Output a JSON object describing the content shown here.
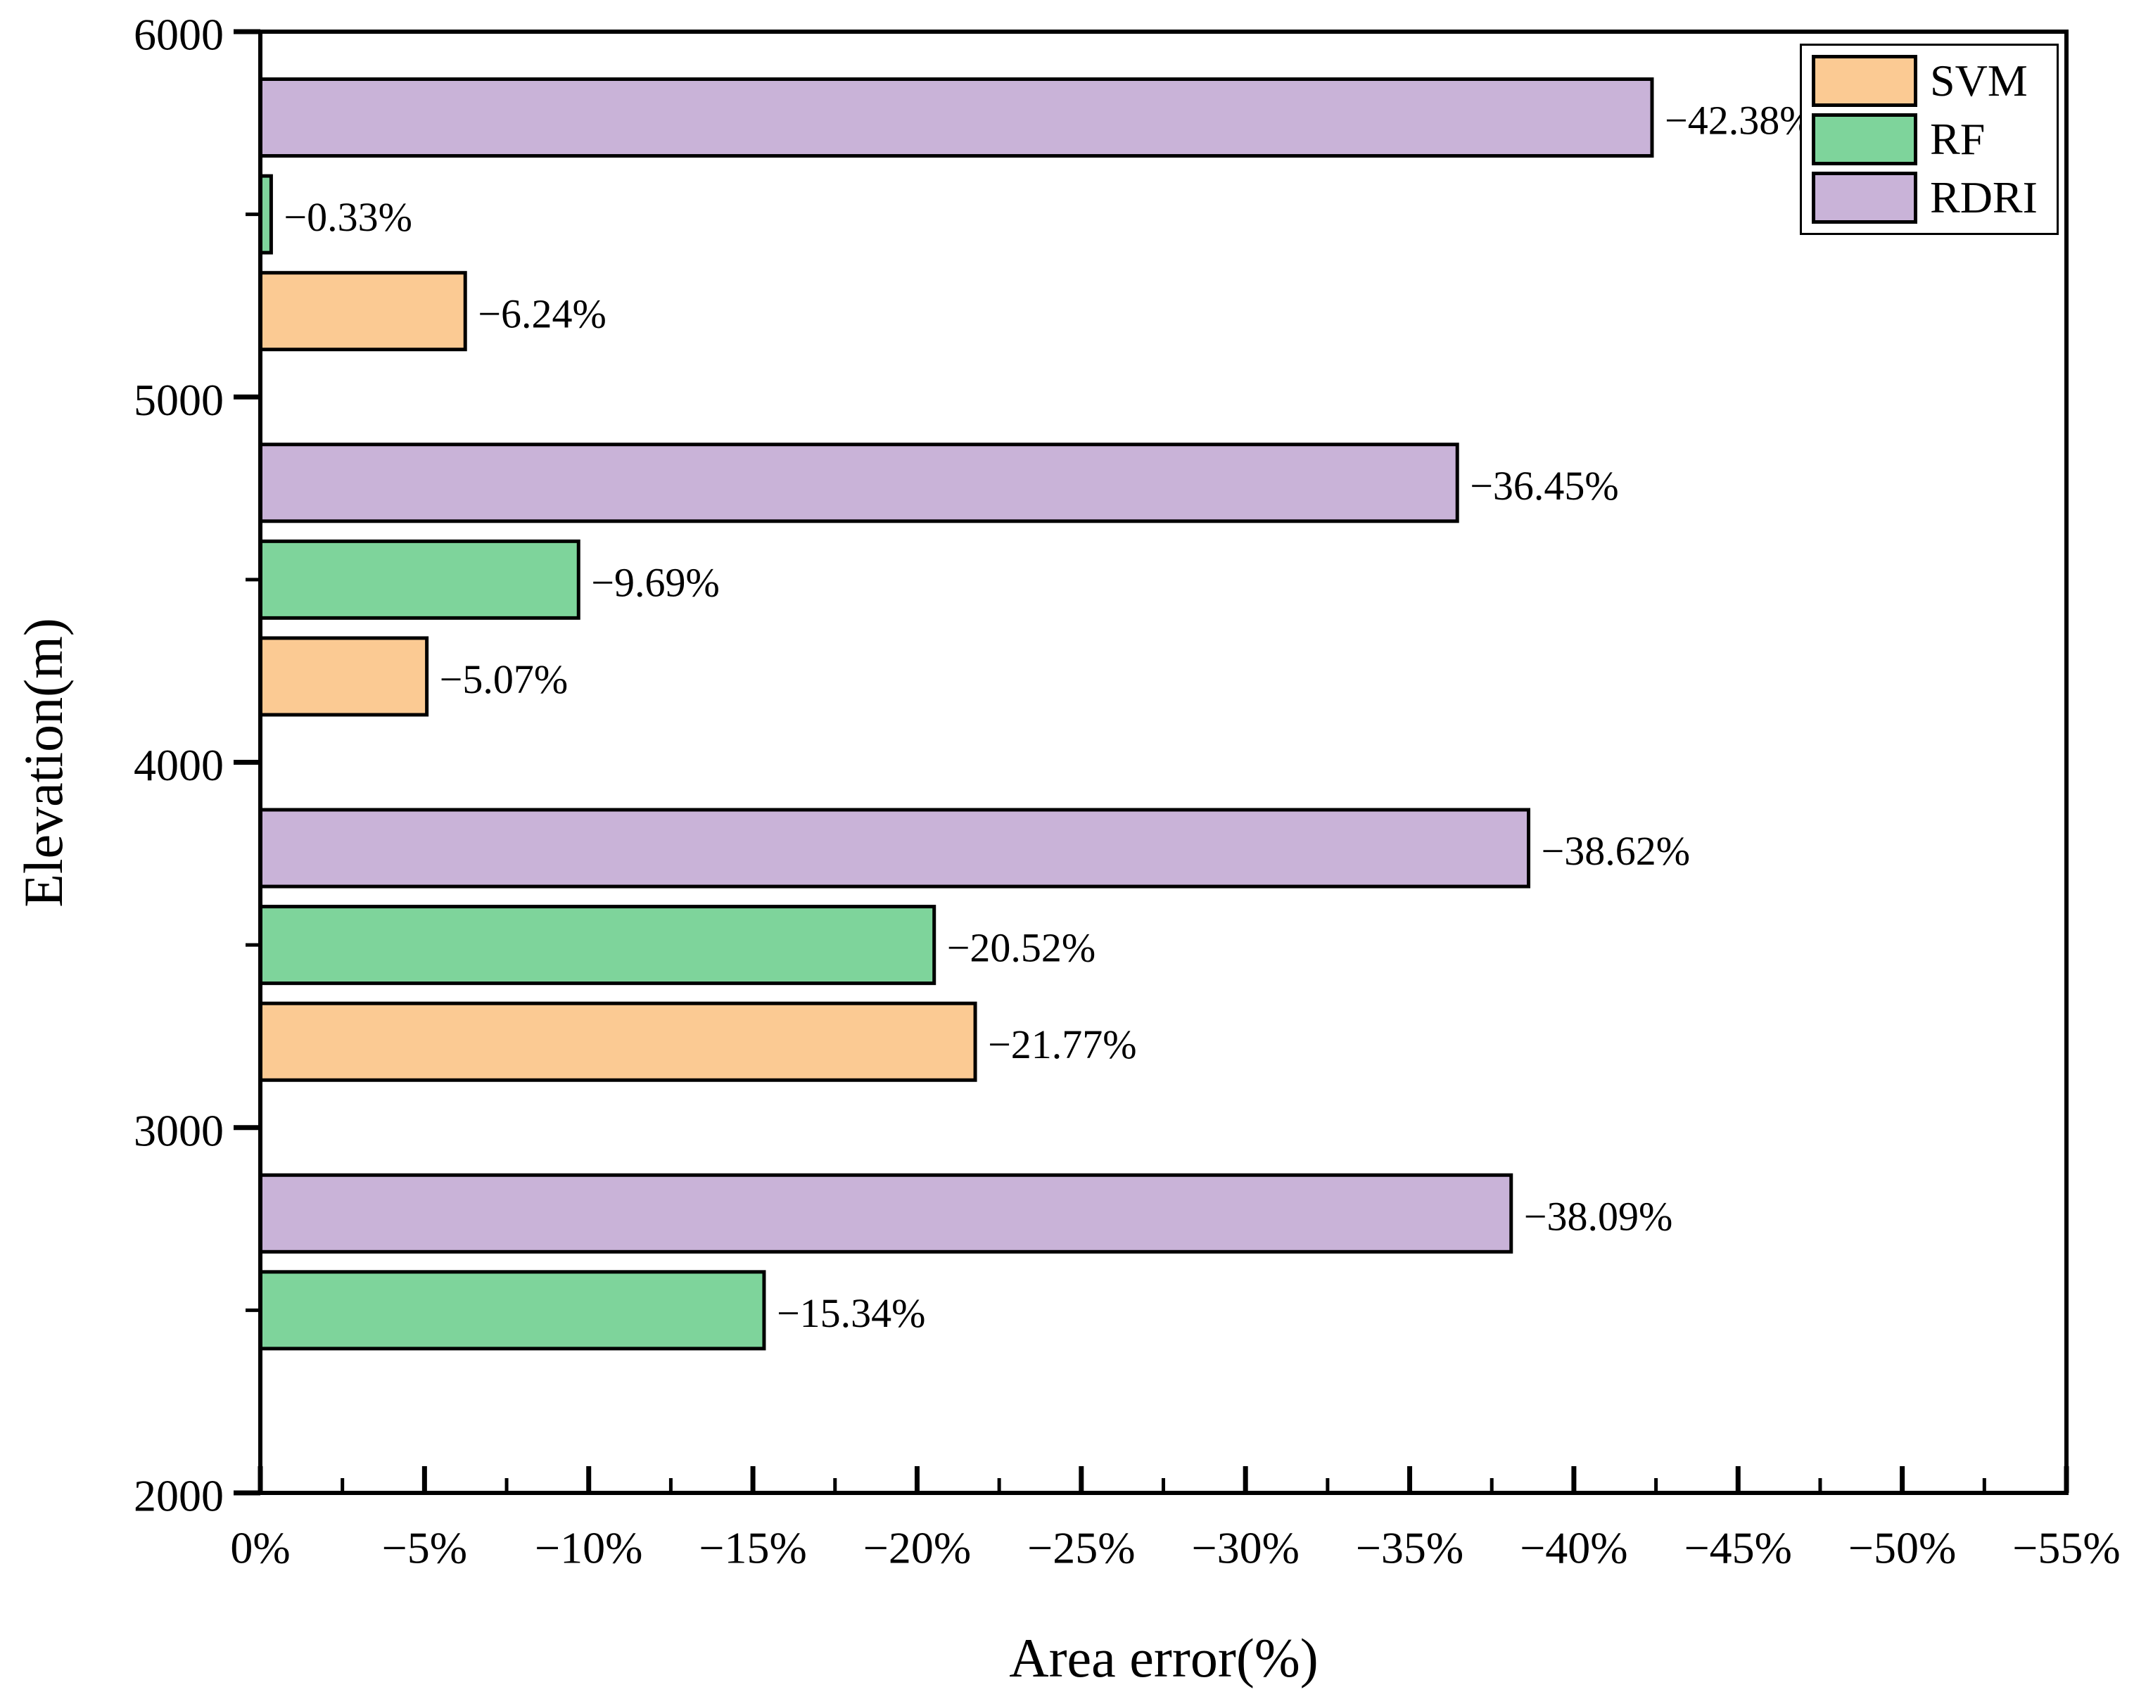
{
  "figure": {
    "x_axis_title": "Area error(%)",
    "y_axis_title": "Elevation(m)"
  },
  "legend": {
    "items": [
      {
        "label": "SVM",
        "color": "#FBCA93"
      },
      {
        "label": "RF",
        "color": "#7ED49B"
      },
      {
        "label": "RDRI",
        "color": "#C9B3D8"
      }
    ]
  },
  "chart_data": {
    "type": "bar",
    "orientation": "horizontal",
    "title": "",
    "xlabel": "Area error(%)",
    "ylabel": "Elevation(m)",
    "xlim": [
      0,
      -55
    ],
    "ylim": [
      2000,
      6000
    ],
    "x_tick_step": 5,
    "x_minor_tick_step": 2.5,
    "y_minor_tick_step": 500,
    "grid": false,
    "legend_position": "upper right",
    "x_ticks": [
      {
        "value": 0,
        "label": "0%"
      },
      {
        "value": -5,
        "label": "−5%"
      },
      {
        "value": -10,
        "label": "−10%"
      },
      {
        "value": -15,
        "label": "−15%"
      },
      {
        "value": -20,
        "label": "−20%"
      },
      {
        "value": -25,
        "label": "−25%"
      },
      {
        "value": -30,
        "label": "−30%"
      },
      {
        "value": -35,
        "label": "−35%"
      },
      {
        "value": -40,
        "label": "−40%"
      },
      {
        "value": -45,
        "label": "−45%"
      },
      {
        "value": -50,
        "label": "−50%"
      },
      {
        "value": -55,
        "label": "−55%"
      }
    ],
    "y_ticks": [
      {
        "value": 2000,
        "label": "2000"
      },
      {
        "value": 3000,
        "label": "3000"
      },
      {
        "value": 4000,
        "label": "4000"
      },
      {
        "value": 5000,
        "label": "5000"
      },
      {
        "value": 6000,
        "label": "6000"
      }
    ],
    "series": [
      {
        "name": "SVM",
        "color": "#FBCA93"
      },
      {
        "name": "RF",
        "color": "#7ED49B"
      },
      {
        "name": "RDRI",
        "color": "#C9B3D8"
      }
    ],
    "groups": [
      {
        "band_center_elevation": 5500,
        "bars": [
          {
            "series": "RDRI",
            "value": -42.38,
            "label": "−42.38%"
          },
          {
            "series": "RF",
            "value": -0.33,
            "label": "−0.33%"
          },
          {
            "series": "SVM",
            "value": -6.24,
            "label": "−6.24%"
          }
        ]
      },
      {
        "band_center_elevation": 4500,
        "bars": [
          {
            "series": "RDRI",
            "value": -36.45,
            "label": "−36.45%"
          },
          {
            "series": "RF",
            "value": -9.69,
            "label": "−9.69%"
          },
          {
            "series": "SVM",
            "value": -5.07,
            "label": "−5.07%"
          }
        ]
      },
      {
        "band_center_elevation": 3500,
        "bars": [
          {
            "series": "RDRI",
            "value": -38.62,
            "label": "−38.62%"
          },
          {
            "series": "RF",
            "value": -20.52,
            "label": "−20.52%"
          },
          {
            "series": "SVM",
            "value": -21.77,
            "label": "−21.77%"
          }
        ]
      },
      {
        "band_center_elevation": 2500,
        "bars": [
          {
            "series": "RDRI",
            "value": -38.09,
            "label": "−38.09%"
          },
          {
            "series": "RF",
            "value": -15.34,
            "label": "−15.34%"
          }
        ]
      }
    ]
  }
}
